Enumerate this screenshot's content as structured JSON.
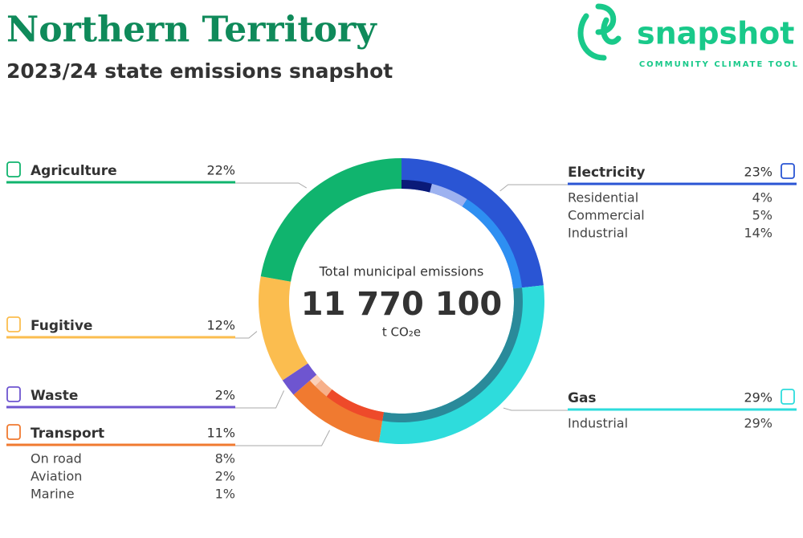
{
  "brand": {
    "name": "snapshot",
    "tagline": "COMMUNITY CLIMATE TOOL"
  },
  "chart_data": {
    "type": "donut",
    "title": "Northern Territory",
    "subtitle": "2023/24 state emissions snapshot",
    "center_label": "Total municipal emissions",
    "total": {
      "value": 11770100,
      "label": "11 770 100"
    },
    "unit": "t CO₂e",
    "sectors": [
      {
        "name": "Electricity",
        "color": "#2a55d4",
        "value": 23,
        "value_label": "23%",
        "subsectors": [
          {
            "name": "Residential",
            "color": "#0a1a78",
            "value": 4,
            "value_label": "4%"
          },
          {
            "name": "Commercial",
            "color": "#9db2f0",
            "value": 5,
            "value_label": "5%"
          },
          {
            "name": "Industrial",
            "color": "#2e8ff2",
            "value": 14,
            "value_label": "14%"
          }
        ]
      },
      {
        "name": "Gas",
        "color": "#2edcdc",
        "value": 29,
        "value_label": "29%",
        "subsectors": [
          {
            "name": "Industrial",
            "color": "#2a8a9a",
            "value": 29,
            "value_label": "29%"
          }
        ]
      },
      {
        "name": "Transport",
        "color": "#f07a30",
        "value": 11,
        "value_label": "11%",
        "subsectors": [
          {
            "name": "On road",
            "color": "#ee4a2a",
            "value": 8,
            "value_label": "8%"
          },
          {
            "name": "Aviation",
            "color": "#f7b08a",
            "value": 2,
            "value_label": "2%"
          },
          {
            "name": "Marine",
            "color": "#fbd0b8",
            "value": 1,
            "value_label": "1%"
          }
        ]
      },
      {
        "name": "Waste",
        "color": "#6e55d0",
        "value": 2,
        "value_label": "2%",
        "subsectors": []
      },
      {
        "name": "Fugitive",
        "color": "#fbbd4f",
        "value": 12,
        "value_label": "12%",
        "subsectors": []
      },
      {
        "name": "Agriculture",
        "color": "#10b46e",
        "value": 22,
        "value_label": "22%",
        "subsectors": []
      }
    ]
  }
}
